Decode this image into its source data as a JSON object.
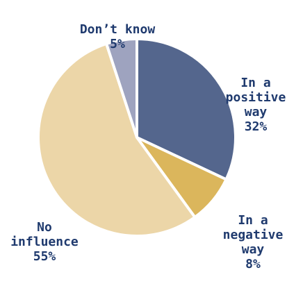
{
  "chart_data": {
    "type": "pie",
    "title": "",
    "slices": [
      {
        "label": "In a positive way",
        "value": 32,
        "value_label": "32%",
        "color": "#54668d"
      },
      {
        "label": "In a negative way",
        "value": 8,
        "value_label": "8%",
        "color": "#dbb65c"
      },
      {
        "label": "No influence",
        "value": 55,
        "value_label": "55%",
        "color": "#ecd6a8"
      },
      {
        "label": "Don’t know",
        "value": 5,
        "value_label": "5%",
        "color": "#9ea3bf"
      }
    ],
    "label_text": {
      "positive": "In a\npositive\nway",
      "negative": "In a\nnegative\nway",
      "none": "No\ninfluence",
      "dontknow": "Don’t know"
    },
    "label_color": "#1f3a6e",
    "separator_color": "#ffffff"
  }
}
